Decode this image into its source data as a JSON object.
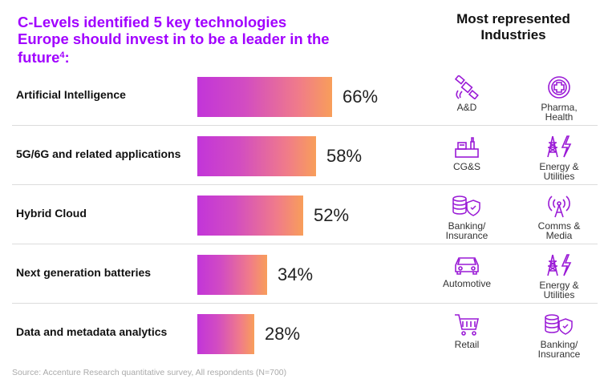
{
  "header": {
    "title": "C-Levels identified 5 key technologies Europe should invest in to be a leader in the future",
    "title_footnote": "4",
    "title_colon": ":",
    "industries_title": "Most represented Industries"
  },
  "chart_data": {
    "type": "bar",
    "orientation": "horizontal",
    "categories": [
      "Artificial Intelligence",
      "5G/6G and related applications",
      "Hybrid Cloud",
      "Next generation batteries",
      "Data and metadata analytics"
    ],
    "values": [
      66,
      58,
      52,
      34,
      28
    ],
    "value_labels": [
      "66%",
      "58%",
      "52%",
      "34%",
      "28%"
    ],
    "unit": "%",
    "xlim": [
      0,
      100
    ],
    "colors": [
      "#c235d9",
      "#f89e5a"
    ]
  },
  "industries": [
    [
      {
        "icon": "satellite-icon",
        "label": "A&D"
      },
      {
        "icon": "pharma-cross-icon",
        "label": "Pharma, Health"
      }
    ],
    [
      {
        "icon": "consumer-goods-icon",
        "label": "CG&S"
      },
      {
        "icon": "energy-tower-icon",
        "label": "Energy & Utilities"
      }
    ],
    [
      {
        "icon": "coins-shield-icon",
        "label": "Banking/ Insurance"
      },
      {
        "icon": "antenna-icon",
        "label": "Comms & Media"
      }
    ],
    [
      {
        "icon": "car-icon",
        "label": "Automotive"
      },
      {
        "icon": "energy-tower-icon",
        "label": "Energy & Utilities"
      }
    ],
    [
      {
        "icon": "shopping-cart-icon",
        "label": "Retail"
      },
      {
        "icon": "coins-shield-icon",
        "label": "Banking/ Insurance"
      }
    ]
  ],
  "source": "Source: Accenture Research quantitative survey, All respondents (N=700)",
  "colors": {
    "accent": "#a100ff",
    "icon": "#9a1ad6"
  }
}
